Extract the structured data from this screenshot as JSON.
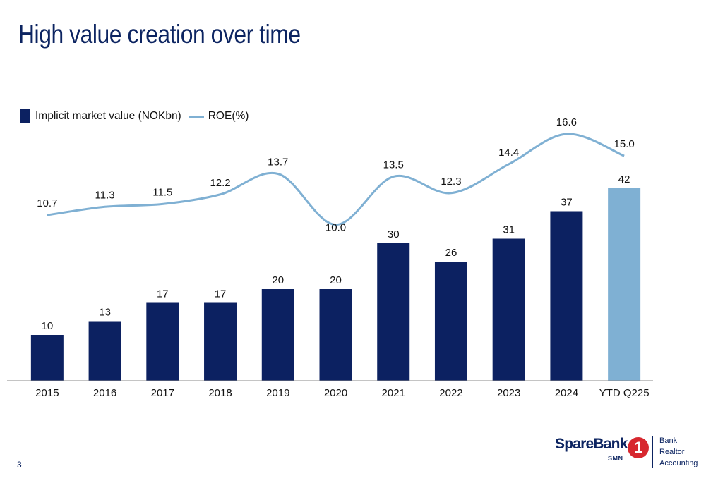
{
  "title": "High value creation over time",
  "page_number": "3",
  "legend": {
    "bar_label": "Implicit market value (NOKbn)",
    "line_label": "ROE(%)"
  },
  "colors": {
    "bar": "#0c2161",
    "bar_highlight": "#7fb0d3",
    "line": "#7fb0d3",
    "title": "#0c2461"
  },
  "chart_data": {
    "type": "bar",
    "categories": [
      "2015",
      "2016",
      "2017",
      "2018",
      "2019",
      "2020",
      "2021",
      "2022",
      "2023",
      "2024",
      "YTD Q225"
    ],
    "series": [
      {
        "name": "Implicit market value (NOKbn)",
        "type": "bar",
        "values": [
          10,
          13,
          17,
          17,
          20,
          20,
          30,
          26,
          31,
          37,
          42
        ],
        "labels": [
          "10",
          "13",
          "17",
          "17",
          "20",
          "20",
          "30",
          "26",
          "31",
          "37",
          "42"
        ],
        "highlight_index": 10
      },
      {
        "name": "ROE(%)",
        "type": "line",
        "smooth": true,
        "values": [
          10.7,
          11.3,
          11.5,
          12.2,
          13.7,
          10.0,
          13.5,
          12.3,
          14.4,
          16.6,
          15.0
        ],
        "labels": [
          "10.7",
          "11.3",
          "11.5",
          "12.2",
          "13.7",
          "10.0",
          "13.5",
          "12.3",
          "14.4",
          "16.6",
          "15.0"
        ]
      }
    ],
    "xlabel": "",
    "ylabel": "",
    "grid": false,
    "legend_position": "top-left"
  },
  "logo": {
    "wordmark": "SpareBank",
    "sub": "SMN",
    "numeral": "1",
    "items": [
      "Bank",
      "Realtor",
      "Accounting"
    ]
  }
}
